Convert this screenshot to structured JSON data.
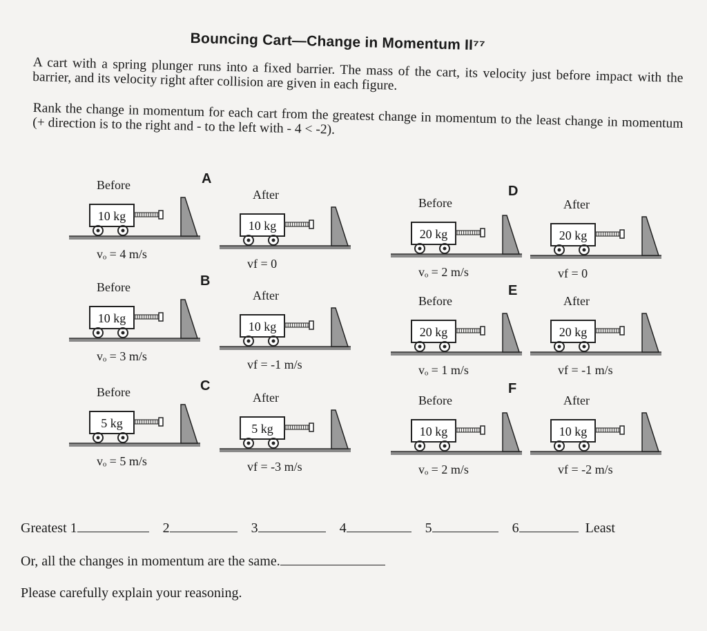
{
  "title": "Bouncing Cart—Change in Momentum II⁷⁷",
  "intro": "A cart with a spring plunger runs into a fixed barrier. The mass of the cart, its velocity just before impact with the barrier, and its velocity right after collision are given in each figure.",
  "instruction": "Rank the change in momentum for each cart from the greatest change in momentum to the least change in momentum (+ direction is to the right and - to the left with - 4 < -2).",
  "scenarios": [
    {
      "letter": "A",
      "before": {
        "label": "Before",
        "mass": "10 kg",
        "velocity": "vₒ = 4 m/s"
      },
      "after": {
        "label": "After",
        "mass": "10 kg",
        "velocity": "vf = 0"
      }
    },
    {
      "letter": "B",
      "before": {
        "label": "Before",
        "mass": "10 kg",
        "velocity": "vₒ = 3 m/s"
      },
      "after": {
        "label": "After",
        "mass": "10 kg",
        "velocity": "vf = -1 m/s"
      }
    },
    {
      "letter": "C",
      "before": {
        "label": "Before",
        "mass": "5 kg",
        "velocity": "vₒ = 5 m/s"
      },
      "after": {
        "label": "After",
        "mass": "5 kg",
        "velocity": "vf = -3 m/s"
      }
    },
    {
      "letter": "D",
      "before": {
        "label": "Before",
        "mass": "20 kg",
        "velocity": "vₒ = 2 m/s"
      },
      "after": {
        "label": "After",
        "mass": "20 kg",
        "velocity": "vf = 0"
      }
    },
    {
      "letter": "E",
      "before": {
        "label": "Before",
        "mass": "20 kg",
        "velocity": "vₒ = 1 m/s"
      },
      "after": {
        "label": "After",
        "mass": "20 kg",
        "velocity": "vf = -1 m/s"
      }
    },
    {
      "letter": "F",
      "before": {
        "label": "Before",
        "mass": "10 kg",
        "velocity": "vₒ = 2 m/s"
      },
      "after": {
        "label": "After",
        "mass": "10 kg",
        "velocity": "vf = -2 m/s"
      }
    }
  ],
  "ranking": {
    "greatest": "Greatest",
    "least": "Least",
    "slots": [
      "1",
      "2",
      "3",
      "4",
      "5",
      "6"
    ]
  },
  "same_prompt": "Or, all the changes in momentum are the same.",
  "explain_prompt": "Please carefully explain your reasoning."
}
